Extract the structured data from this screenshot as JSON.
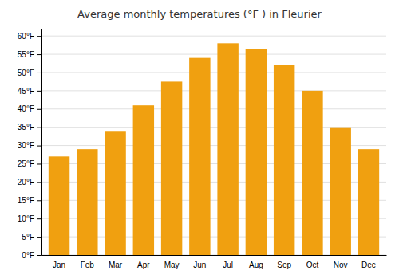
{
  "chart_data": {
    "type": "bar",
    "title": "Average monthly temperatures (°F ) in Fleurier",
    "categories": [
      "Jan",
      "Feb",
      "Mar",
      "Apr",
      "May",
      "Jun",
      "Jul",
      "Aug",
      "Sep",
      "Oct",
      "Nov",
      "Dec"
    ],
    "values": [
      27,
      29,
      34,
      41,
      47.5,
      54,
      58,
      56.5,
      52,
      45,
      35,
      29
    ],
    "color": "#F0A010",
    "ylim": [
      0,
      62
    ],
    "yticks": [
      {
        "value": 0,
        "label": "0°F"
      },
      {
        "value": 5,
        "label": "5°F"
      },
      {
        "value": 10,
        "label": "10°F"
      },
      {
        "value": 15,
        "label": "15°F"
      },
      {
        "value": 20,
        "label": "20°F"
      },
      {
        "value": 25,
        "label": "25°F"
      },
      {
        "value": 30,
        "label": "30°F"
      },
      {
        "value": 35,
        "label": "35°F"
      },
      {
        "value": 40,
        "label": "40°F"
      },
      {
        "value": 45,
        "label": "45°F"
      },
      {
        "value": 50,
        "label": "50°F"
      },
      {
        "value": 55,
        "label": "55°F"
      },
      {
        "value": 60,
        "label": "60°F"
      }
    ],
    "grid": true
  }
}
